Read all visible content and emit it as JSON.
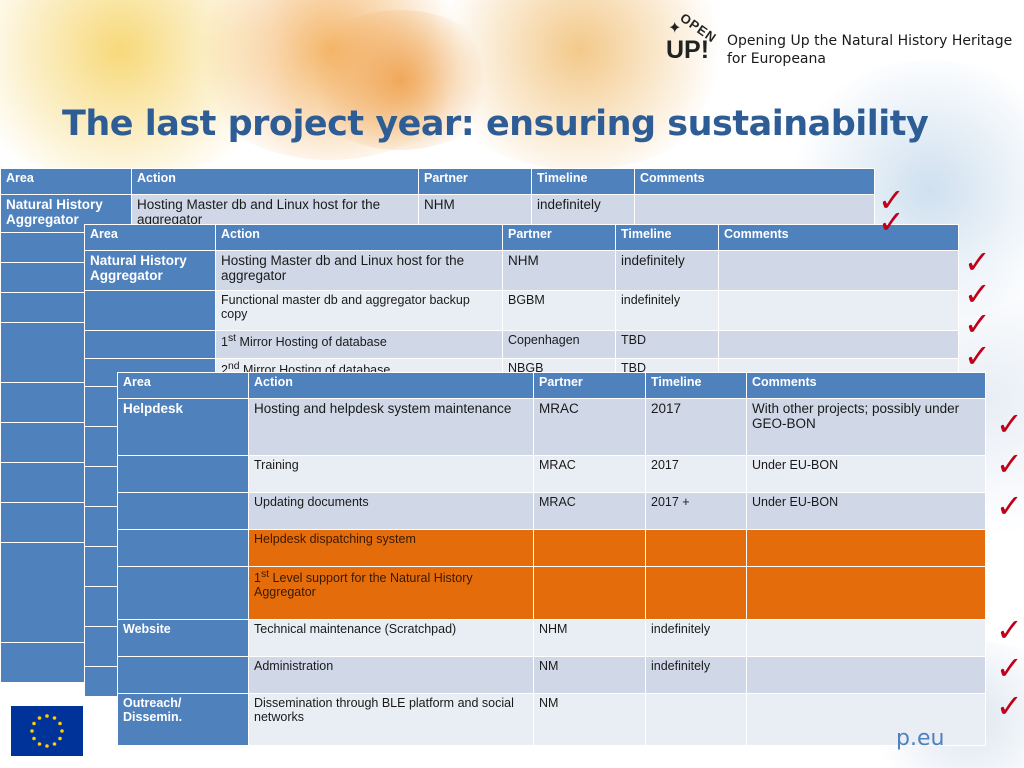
{
  "logo": {
    "open": "OPEN",
    "up": "UP!",
    "tagline_line1": "Opening Up the Natural History Heritage",
    "tagline_line2": "for Europeana"
  },
  "slide": {
    "title": "The last project year: ensuring sustainability",
    "footer_site": "p.eu"
  },
  "colors": {
    "header_blue": "#4f81bd",
    "title_blue": "#2e5d96",
    "orange": "#e46c0a",
    "check_red": "#c0001a"
  },
  "headers": {
    "area": "Area",
    "action": "Action",
    "partner": "Partner",
    "timeline": "Timeline",
    "comments": "Comments"
  },
  "table1": {
    "rows": [
      {
        "area": "Natural History Aggregator",
        "action": "Hosting Master db and Linux host for the aggregator",
        "partner": "NHM",
        "timeline": "indefinitely",
        "comments": ""
      }
    ]
  },
  "table2": {
    "rows": [
      {
        "area": "Natural History Aggregator",
        "action": "Hosting Master db and Linux host for the aggregator",
        "partner": "NHM",
        "timeline": "indefinitely",
        "comments": ""
      },
      {
        "area": "",
        "action": "Functional master db and aggregator backup copy",
        "partner": "BGBM",
        "timeline": "indefinitely",
        "comments": ""
      },
      {
        "area": "",
        "action_sup": "st",
        "action_num": "1",
        "action_rest": " Mirror Hosting of database",
        "partner": "Copenhagen",
        "timeline": "TBD",
        "comments": ""
      },
      {
        "area": "",
        "action_sup": "nd",
        "action_num": "2",
        "action_rest": " Mirror Hosting of database",
        "partner": "NBGB",
        "timeline": "TBD",
        "comments": ""
      }
    ]
  },
  "table3": {
    "rows": [
      {
        "area": "Helpdesk",
        "action": "Hosting and helpdesk system maintenance",
        "partner": "MRAC",
        "timeline": "2017",
        "comments": "With other projects; possibly under GEO-BON"
      },
      {
        "area": "",
        "action": "Training",
        "partner": "MRAC",
        "timeline": "2017",
        "comments": "Under EU-BON"
      },
      {
        "area": "",
        "action": "Updating documents",
        "partner": "MRAC",
        "timeline": "2017 +",
        "comments": "Under EU-BON"
      },
      {
        "area": "",
        "action": "Helpdesk dispatching system",
        "partner": "",
        "timeline": "",
        "comments": ""
      },
      {
        "area": "",
        "action_num": "1",
        "action_sup": "st",
        "action_rest": " Level support for the Natural History Aggregator",
        "partner": "",
        "timeline": "",
        "comments": ""
      },
      {
        "area": "Website",
        "action": "Technical maintenance (Scratchpad)",
        "partner": "NHM",
        "timeline": "indefinitely",
        "comments": ""
      },
      {
        "area": "",
        "action": "Administration",
        "partner": "NM",
        "timeline": "indefinitely",
        "comments": ""
      },
      {
        "area": "Outreach/ Dissemin.",
        "action": "Dissemination through BLE platform and social networks",
        "partner": "NM",
        "timeline": "",
        "comments": ""
      }
    ]
  },
  "checkmark": "✓"
}
